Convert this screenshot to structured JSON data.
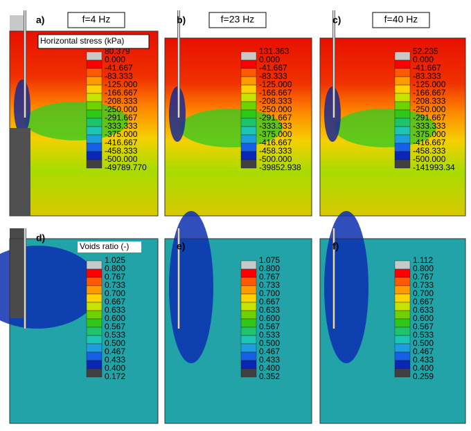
{
  "rows": [
    {
      "colors": [
        "#c8c8c8",
        "#ff0000",
        "#ff5a00",
        "#ff9a00",
        "#ffd200",
        "#c4e400",
        "#6cd200",
        "#2ec81a",
        "#1cc46c",
        "#1cc4b4",
        "#1e9ee0",
        "#1660e8",
        "#0a26b4",
        "#404040"
      ],
      "panels": [
        {
          "label": "a)",
          "title": "f=4 Hz",
          "legend_title": "Horizontal stress (kPa)",
          "levels": [
            "80.379",
            "0.000",
            "-41.667",
            "-83.333",
            "-125.000",
            "-166.667",
            "-208.333",
            "-250.000",
            "-291.667",
            "-333.333",
            "-375.000",
            "-416.667",
            "-458.333",
            "-500.000",
            "-49789.770"
          ]
        },
        {
          "label": "b)",
          "title": "f=23 Hz",
          "levels": [
            "131.363",
            "0.000",
            "-41.667",
            "-83.333",
            "-125.000",
            "-166.667",
            "-208.333",
            "-250.000",
            "-291.667",
            "-333.333",
            "-375.000",
            "-416.667",
            "-458.333",
            "-500.000",
            "-39852.938"
          ]
        },
        {
          "label": "c)",
          "title": "f=40 Hz",
          "levels": [
            "52.235",
            "0.000",
            "-41.667",
            "-83.333",
            "-125.000",
            "-166.667",
            "-208.333",
            "-250.000",
            "-291.667",
            "-333.333",
            "-375.000",
            "-416.667",
            "-458.333",
            "-500.000",
            "-141993.34"
          ]
        }
      ]
    },
    {
      "colors": [
        "#c8c8c8",
        "#ff0000",
        "#ff5a00",
        "#ff9a00",
        "#ffd200",
        "#c4e400",
        "#6cd200",
        "#2ec81a",
        "#1cc46c",
        "#1cc4b4",
        "#1e9ee0",
        "#1660e8",
        "#0a26b4",
        "#404040"
      ],
      "panels": [
        {
          "label": "d)",
          "legend_title": "Voids ratio (-)",
          "levels": [
            "1.025",
            "0.800",
            "0.767",
            "0.733",
            "0.700",
            "0.667",
            "0.633",
            "0.600",
            "0.567",
            "0.533",
            "0.500",
            "0.467",
            "0.433",
            "0.400",
            "0.172"
          ]
        },
        {
          "label": "e)",
          "levels": [
            "1.075",
            "0.800",
            "0.767",
            "0.733",
            "0.700",
            "0.667",
            "0.633",
            "0.600",
            "0.567",
            "0.533",
            "0.500",
            "0.467",
            "0.433",
            "0.400",
            "0.352"
          ]
        },
        {
          "label": "f)",
          "levels": [
            "1.112",
            "0.800",
            "0.767",
            "0.733",
            "0.700",
            "0.667",
            "0.633",
            "0.600",
            "0.567",
            "0.533",
            "0.500",
            "0.467",
            "0.433",
            "0.400",
            "0.259"
          ]
        }
      ]
    }
  ]
}
